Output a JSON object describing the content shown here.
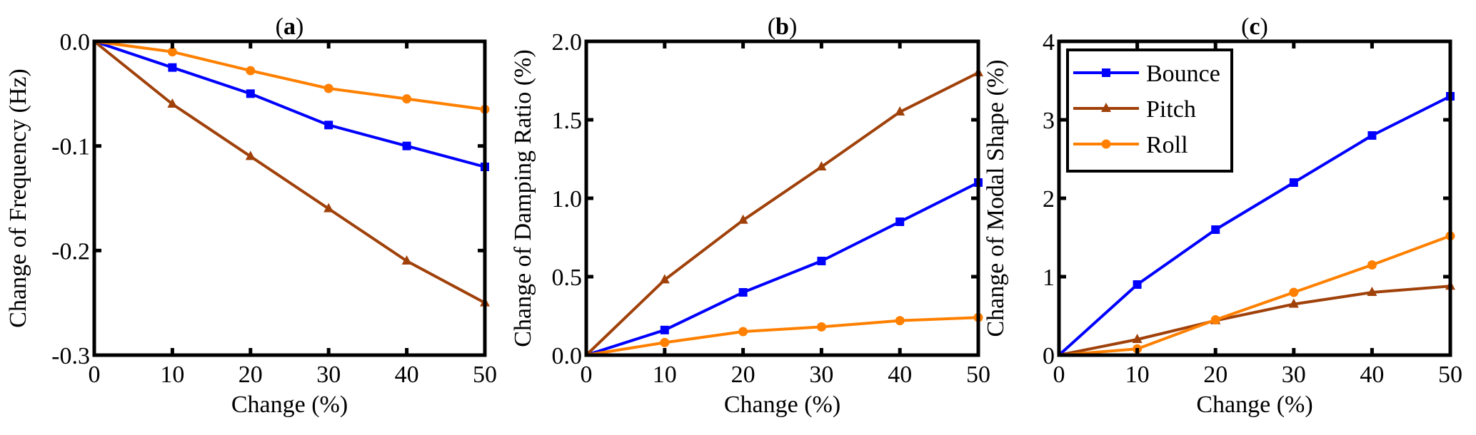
{
  "series_style": {
    "Bounce": {
      "color": "#0000FF",
      "marker": "square"
    },
    "Pitch": {
      "color": "#A0410A",
      "marker": "triangle"
    },
    "Roll": {
      "color": "#FF8000",
      "marker": "circle"
    }
  },
  "chart_data": [
    {
      "type": "line",
      "title": "(a)",
      "title_letter": "a",
      "xlabel": "Change (%)",
      "ylabel": "Change of  Frequency (Hz)",
      "xlim": [
        0,
        50
      ],
      "ylim": [
        -0.3,
        0.0
      ],
      "xticks": [
        0,
        10,
        20,
        30,
        40,
        50
      ],
      "xtick_labels": [
        "0",
        "10",
        "20",
        "30",
        "40",
        "50"
      ],
      "yticks": [
        -0.3,
        -0.2,
        -0.1,
        0.0
      ],
      "ytick_labels": [
        "-0.3",
        "-0.2",
        "-0.1",
        "0.0"
      ],
      "grid": false,
      "x": [
        0,
        10,
        20,
        30,
        40,
        50
      ],
      "series": [
        {
          "name": "Bounce",
          "values": [
            0,
            -0.025,
            -0.05,
            -0.08,
            -0.1,
            -0.12
          ]
        },
        {
          "name": "Pitch",
          "values": [
            0,
            -0.06,
            -0.11,
            -0.16,
            -0.21,
            -0.25
          ]
        },
        {
          "name": "Roll",
          "values": [
            0,
            -0.01,
            -0.028,
            -0.045,
            -0.055,
            -0.065
          ]
        }
      ]
    },
    {
      "type": "line",
      "title": "(b)",
      "title_letter": "b",
      "xlabel": "Change (%)",
      "ylabel": "Change of  Damping Ratio (%)",
      "xlim": [
        0,
        50
      ],
      "ylim": [
        0.0,
        2.0
      ],
      "xticks": [
        0,
        10,
        20,
        30,
        40,
        50
      ],
      "xtick_labels": [
        "0",
        "10",
        "20",
        "30",
        "40",
        "50"
      ],
      "yticks": [
        0.0,
        0.5,
        1.0,
        1.5,
        2.0
      ],
      "ytick_labels": [
        "0.0",
        "0.5",
        "1.0",
        "1.5",
        "2.0"
      ],
      "grid": false,
      "x": [
        0,
        10,
        20,
        30,
        40,
        50
      ],
      "series": [
        {
          "name": "Bounce",
          "values": [
            0,
            0.16,
            0.4,
            0.6,
            0.85,
            1.1
          ]
        },
        {
          "name": "Pitch",
          "values": [
            0,
            0.48,
            0.86,
            1.2,
            1.55,
            1.8
          ]
        },
        {
          "name": "Roll",
          "values": [
            0,
            0.08,
            0.15,
            0.18,
            0.22,
            0.24
          ]
        }
      ]
    },
    {
      "type": "line",
      "title": "(c)",
      "title_letter": "c",
      "xlabel": "Change (%)",
      "ylabel": "Change of Modal Shape (%)",
      "xlim": [
        0,
        50
      ],
      "ylim": [
        0,
        4
      ],
      "xticks": [
        0,
        10,
        20,
        30,
        40,
        50
      ],
      "xtick_labels": [
        "0",
        "10",
        "20",
        "30",
        "40",
        "50"
      ],
      "yticks": [
        0,
        1,
        2,
        3,
        4
      ],
      "ytick_labels": [
        "0",
        "1",
        "2",
        "3",
        "4"
      ],
      "grid": false,
      "legend": {
        "placement": "top-left",
        "entries": [
          "Bounce",
          "Pitch",
          "Roll"
        ]
      },
      "x": [
        0,
        10,
        20,
        30,
        40,
        50
      ],
      "series": [
        {
          "name": "Bounce",
          "values": [
            0,
            0.9,
            1.6,
            2.2,
            2.8,
            3.3
          ]
        },
        {
          "name": "Pitch",
          "values": [
            0,
            0.2,
            0.44,
            0.65,
            0.8,
            0.88
          ]
        },
        {
          "name": "Roll",
          "values": [
            0,
            0.08,
            0.45,
            0.8,
            1.15,
            1.52
          ]
        }
      ]
    }
  ]
}
